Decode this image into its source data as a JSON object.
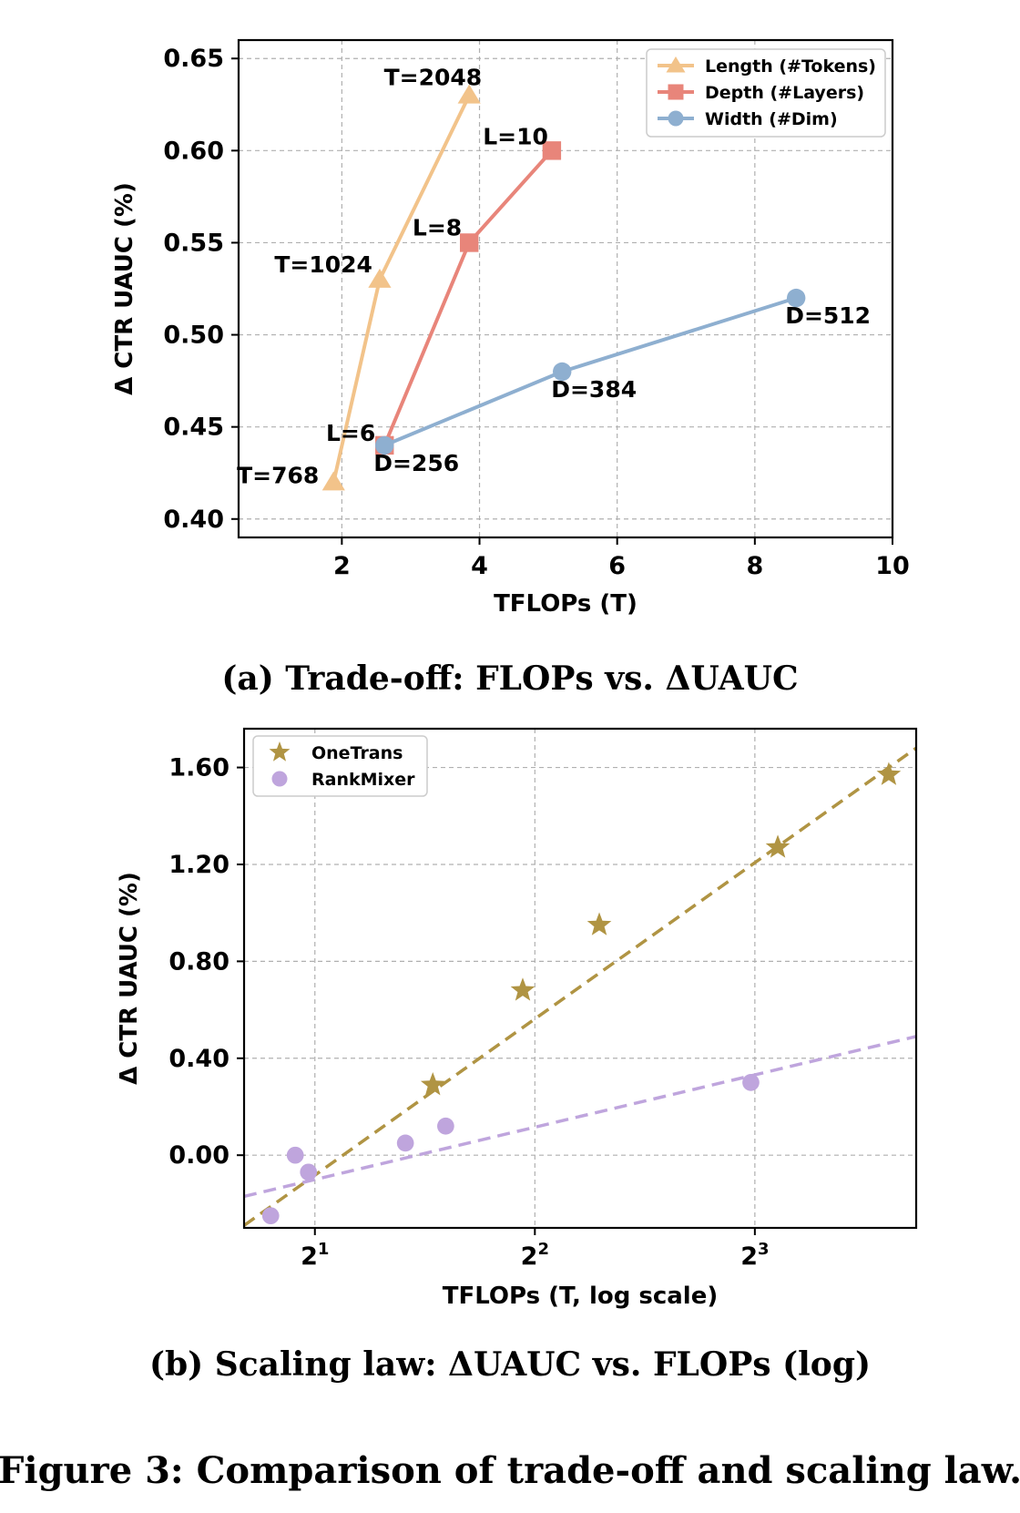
{
  "figure_caption": "Figure 3: Comparison of trade-off and scaling law.",
  "chart_data": [
    {
      "id": "a",
      "type": "line",
      "caption": "(a) Trade-off: FLOPs vs. ΔUAUC",
      "xlabel": "TFLOPs (T)",
      "ylabel": "Δ CTR UAUC (%)",
      "xlim": [
        0.5,
        10
      ],
      "ylim": [
        0.39,
        0.66
      ],
      "xticks": [
        2,
        4,
        6,
        8,
        10
      ],
      "xtick_labels": [
        "2",
        "4",
        "6",
        "8",
        "10"
      ],
      "yticks": [
        0.4,
        0.45,
        0.5,
        0.55,
        0.6,
        0.65
      ],
      "ytick_labels": [
        "0.40",
        "0.45",
        "0.50",
        "0.55",
        "0.60",
        "0.65"
      ],
      "grid": true,
      "legend_position": "top-right",
      "series": [
        {
          "name": "Length (#Tokens)",
          "color": "#f2c38a",
          "marker": "triangle",
          "x": [
            1.88,
            2.55,
            3.85
          ],
          "y": [
            0.42,
            0.53,
            0.63
          ],
          "labels": [
            "T=768",
            "T=1024",
            "T=2048"
          ]
        },
        {
          "name": "Depth (#Layers)",
          "color": "#e8857a",
          "marker": "square",
          "x": [
            2.62,
            3.85,
            5.05
          ],
          "y": [
            0.44,
            0.55,
            0.6
          ],
          "labels": [
            "L=6",
            "L=8",
            "L=10"
          ]
        },
        {
          "name": "Width (#Dim)",
          "color": "#8eafd0",
          "marker": "circle",
          "x": [
            2.62,
            5.2,
            8.6
          ],
          "y": [
            0.44,
            0.48,
            0.52
          ],
          "labels": [
            "D=256",
            "D=384",
            "D=512"
          ]
        }
      ]
    },
    {
      "id": "b",
      "type": "scatter",
      "caption": "(b) Scaling law: ΔUAUC vs. FLOPs (log)",
      "xlabel": "TFLOPs (T, log scale)",
      "ylabel": "Δ CTR UAUC (%)",
      "xscale": "log2",
      "xlim": [
        1.6,
        13.3
      ],
      "ylim": [
        -0.3,
        1.76
      ],
      "xticks": [
        2,
        4,
        8
      ],
      "xtick_labels": [
        "2",
        "2",
        "2"
      ],
      "xtick_exponents": [
        "1",
        "2",
        "3"
      ],
      "yticks": [
        0.0,
        0.4,
        0.8,
        1.2,
        1.6
      ],
      "ytick_labels": [
        "0.00",
        "0.40",
        "0.80",
        "1.20",
        "1.60"
      ],
      "grid": true,
      "legend_position": "top-left",
      "series": [
        {
          "name": "OneTrans",
          "color": "#b09443",
          "marker": "star",
          "x": [
            2.9,
            3.85,
            4.9,
            8.6,
            12.2
          ],
          "y": [
            0.29,
            0.68,
            0.95,
            1.27,
            1.57
          ],
          "fit_line": {
            "x": [
              1.6,
              13.3
            ],
            "y": [
              -0.29,
              1.68
            ]
          }
        },
        {
          "name": "RankMixer",
          "color": "#bfa5dd",
          "marker": "circle",
          "x": [
            1.74,
            1.96,
            1.88,
            2.66,
            3.02,
            7.9
          ],
          "y": [
            -0.25,
            -0.07,
            0.0,
            0.05,
            0.12,
            0.3
          ],
          "fit_line": {
            "x": [
              1.6,
              13.3
            ],
            "y": [
              -0.17,
              0.49
            ]
          }
        }
      ]
    }
  ]
}
